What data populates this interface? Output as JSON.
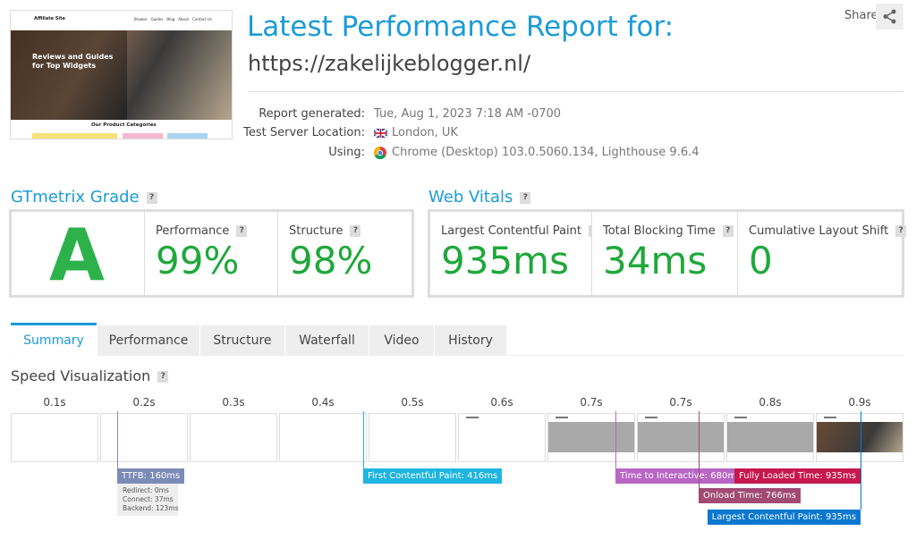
{
  "thumbnail": {
    "site_name": "Affiliate Site",
    "nav": [
      "Browse",
      "Guides",
      "Blog",
      "About",
      "Contact Us"
    ],
    "headline": "Reviews and Guides for Top Widgets",
    "section": "Our Product Categories"
  },
  "header": {
    "title": "Latest Performance Report for:",
    "url": "https://zakelijkeblogger.nl/",
    "share": "Share"
  },
  "report_info": [
    {
      "label": "Report generated:",
      "value": "Tue, Aug 1, 2023 7:18 AM -0700"
    },
    {
      "label": "Test Server Location:",
      "value": "London, UK"
    },
    {
      "label": "Using:",
      "value": "Chrome (Desktop) 103.0.5060.134, Lighthouse 9.6.4"
    }
  ],
  "help_icon": "?",
  "gtmetrix_grade": {
    "title": "GTmetrix Grade",
    "grade": "A",
    "metrics": [
      {
        "label": "Performance",
        "value": "99%"
      },
      {
        "label": "Structure",
        "value": "98%"
      }
    ]
  },
  "web_vitals": {
    "title": "Web Vitals",
    "metrics": [
      {
        "label": "Largest Contentful Paint",
        "value": "935ms"
      },
      {
        "label": "Total Blocking Time",
        "value": "34ms"
      },
      {
        "label": "Cumulative Layout Shift",
        "value": "0"
      }
    ]
  },
  "tabs": [
    "Summary",
    "Performance",
    "Structure",
    "Waterfall",
    "Video",
    "History"
  ],
  "speed_visualization": {
    "title": "Speed Visualization",
    "times": [
      "0.1s",
      "0.2s",
      "0.3s",
      "0.4s",
      "0.5s",
      "0.6s",
      "0.7s",
      "0.7s",
      "0.8s",
      "0.9s"
    ],
    "markers": [
      {
        "label": "TTFB: 160ms",
        "details": [
          "Redirect: 0ms",
          "Connect: 37ms",
          "Backend: 123ms"
        ]
      },
      {
        "label": "First Contentful Paint: 416ms"
      },
      {
        "label": "Time to Interactive: 680ms"
      },
      {
        "label": "Onload Time: 766ms"
      },
      {
        "label": "Fully Loaded Time: 935ms"
      },
      {
        "label": "Largest Contentful Paint: 935ms"
      }
    ]
  }
}
